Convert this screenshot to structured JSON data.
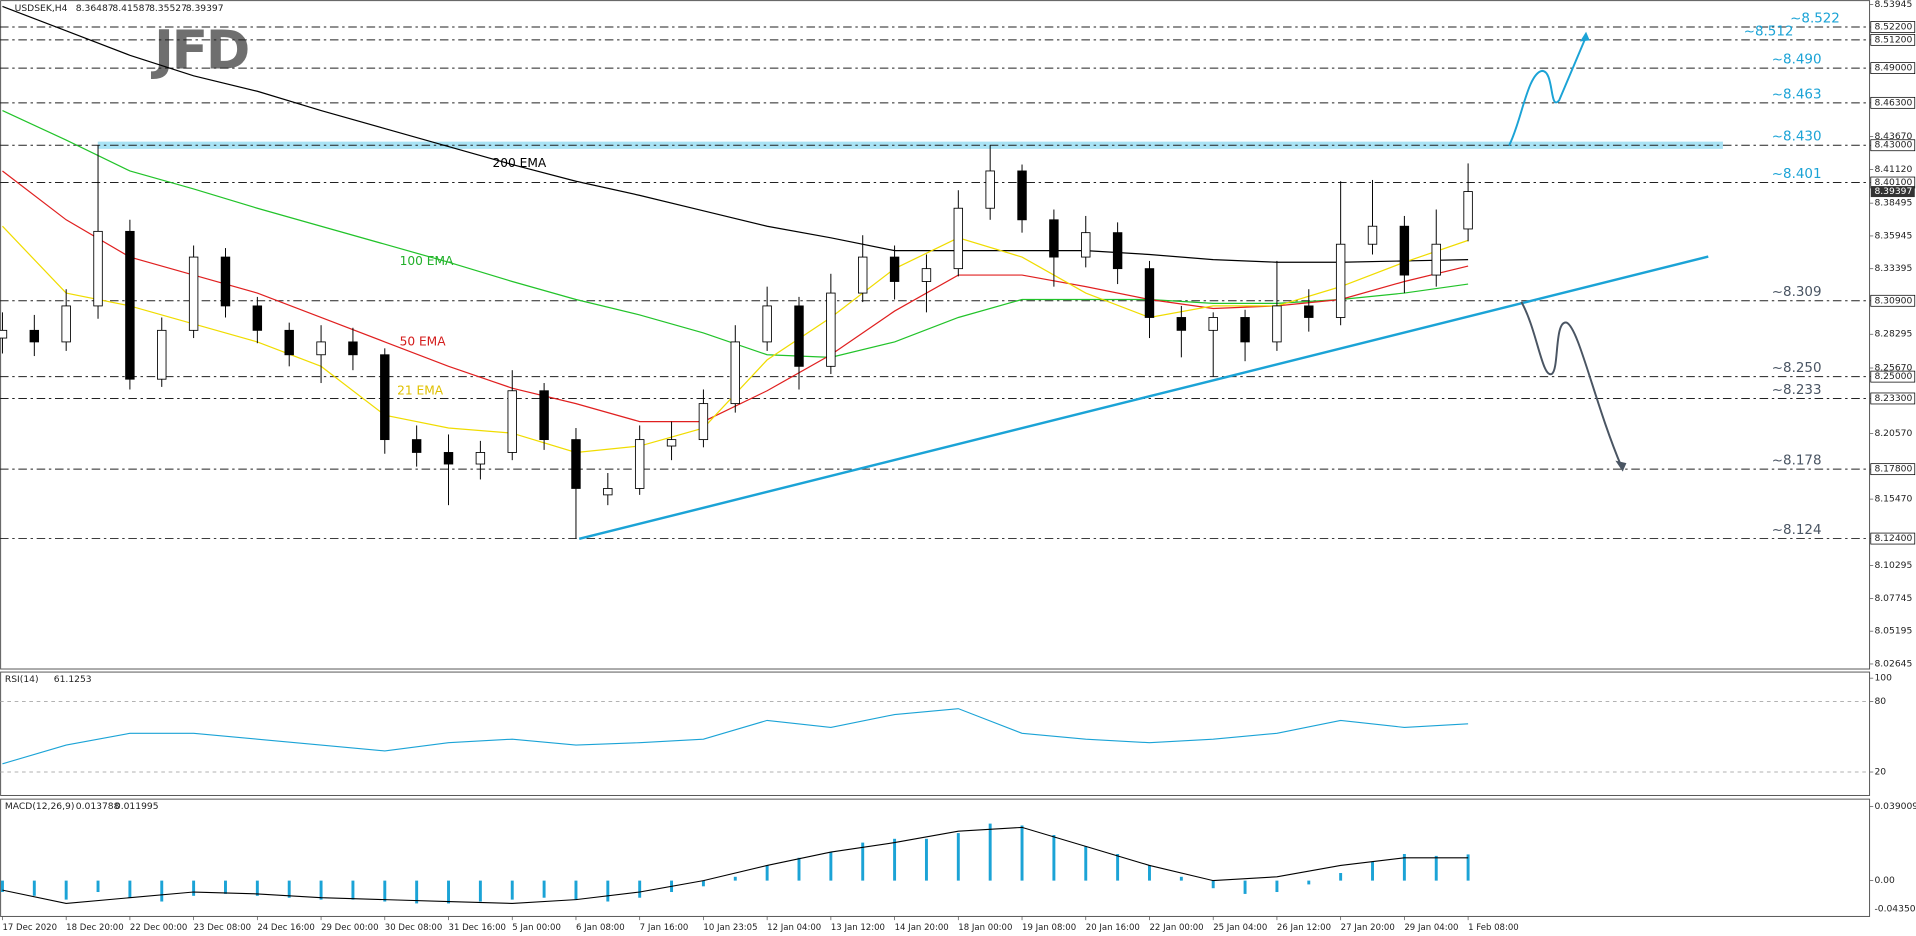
{
  "chart_data": [
    {
      "type": "candlestick",
      "title": "USDSEK,H4",
      "logo": "JFD",
      "xlim": [
        0,
        234.4
      ],
      "ylim": [
        8.023,
        8.543
      ],
      "xticks": [
        {
          "value": 0,
          "label": "17 Dec 2020"
        },
        {
          "value": 8,
          "label": "18 Dec 20:00"
        },
        {
          "value": 16,
          "label": "22 Dec 00:00"
        },
        {
          "value": 24,
          "label": "23 Dec 08:00"
        },
        {
          "value": 32,
          "label": "24 Dec 16:00"
        },
        {
          "value": 40,
          "label": "29 Dec 00:00"
        },
        {
          "value": 48,
          "label": "30 Dec 08:00"
        },
        {
          "value": 56,
          "label": "31 Dec 16:00"
        },
        {
          "value": 64,
          "label": "5 Jan 00:00"
        },
        {
          "value": 72,
          "label": "6 Jan 08:00"
        },
        {
          "value": 80,
          "label": "7 Jan 16:00"
        },
        {
          "value": 88,
          "label": "10 Jan 23:05"
        },
        {
          "value": 96,
          "label": "12 Jan 04:00"
        },
        {
          "value": 104,
          "label": "13 Jan 12:00"
        },
        {
          "value": 112,
          "label": "14 Jan 20:00"
        },
        {
          "value": 120,
          "label": "18 Jan 00:00"
        },
        {
          "value": 128,
          "label": "19 Jan 08:00"
        },
        {
          "value": 136,
          "label": "20 Jan 16:00"
        },
        {
          "value": 144,
          "label": "22 Jan 00:00"
        },
        {
          "value": 152,
          "label": "25 Jan 04:00"
        },
        {
          "value": 160,
          "label": "26 Jan 12:00"
        },
        {
          "value": 168,
          "label": "27 Jan 20:00"
        },
        {
          "value": 176,
          "label": "29 Jan 04:00"
        },
        {
          "value": 184,
          "label": "1 Feb 08:00"
        }
      ],
      "yticks": [
        {
          "value": 8.53945,
          "label": "8.53945"
        },
        {
          "value": 8.522,
          "label": "8.52200"
        },
        {
          "value": 8.512,
          "label": "8.51200"
        },
        {
          "value": 8.49,
          "label": "8.49000"
        },
        {
          "value": 8.463,
          "label": "8.46300"
        },
        {
          "value": 8.4367,
          "label": "8.43670"
        },
        {
          "value": 8.43,
          "label": "8.43000"
        },
        {
          "value": 8.4112,
          "label": "8.41120"
        },
        {
          "value": 8.401,
          "label": "8.40100"
        },
        {
          "value": 8.38495,
          "label": "8.38495"
        },
        {
          "value": 8.35945,
          "label": "8.35945"
        },
        {
          "value": 8.33395,
          "label": "8.33395"
        },
        {
          "value": 8.309,
          "label": "8.30900"
        },
        {
          "value": 8.28295,
          "label": "8.28295"
        },
        {
          "value": 8.2567,
          "label": "8.25670"
        },
        {
          "value": 8.25,
          "label": "8.25000"
        },
        {
          "value": 8.233,
          "label": "8.23300"
        },
        {
          "value": 8.2057,
          "label": "8.20570"
        },
        {
          "value": 8.178,
          "label": "8.17800"
        },
        {
          "value": 8.1547,
          "label": "8.15470"
        },
        {
          "value": 8.124,
          "label": "8.12400"
        },
        {
          "value": 8.10295,
          "label": "8.10295"
        },
        {
          "value": 8.07745,
          "label": "8.07745"
        },
        {
          "value": 8.05195,
          "label": "8.05195"
        },
        {
          "value": 8.02645,
          "label": "8.02645"
        }
      ],
      "up_color": "#ffffff",
      "down_color": "#000000",
      "x": [
        0,
        4,
        8,
        12,
        16,
        20,
        24,
        28,
        32,
        36,
        40,
        44,
        48,
        52,
        56,
        60,
        64,
        68,
        72,
        76,
        80,
        84,
        88,
        92,
        96,
        100,
        104,
        108,
        112,
        116,
        120,
        124,
        128,
        132,
        136,
        140,
        144,
        148,
        152,
        156,
        160,
        164,
        168,
        172,
        176,
        180,
        184
      ],
      "candles": [
        [
          8.28,
          8.3,
          8.268,
          8.286
        ],
        [
          8.286,
          8.298,
          8.266,
          8.277
        ],
        [
          8.277,
          8.318,
          8.27,
          8.305
        ],
        [
          8.305,
          8.43,
          8.295,
          8.363
        ],
        [
          8.363,
          8.372,
          8.24,
          8.248
        ],
        [
          8.248,
          8.296,
          8.242,
          8.286
        ],
        [
          8.286,
          8.352,
          8.28,
          8.343
        ],
        [
          8.343,
          8.35,
          8.296,
          8.305
        ],
        [
          8.305,
          8.312,
          8.276,
          8.286
        ],
        [
          8.286,
          8.292,
          8.258,
          8.267
        ],
        [
          8.267,
          8.29,
          8.245,
          8.277
        ],
        [
          8.277,
          8.288,
          8.255,
          8.267
        ],
        [
          8.267,
          8.272,
          8.19,
          8.201
        ],
        [
          8.201,
          8.212,
          8.18,
          8.191
        ],
        [
          8.191,
          8.205,
          8.15,
          8.182
        ],
        [
          8.182,
          8.2,
          8.17,
          8.191
        ],
        [
          8.191,
          8.255,
          8.185,
          8.239
        ],
        [
          8.239,
          8.245,
          8.193,
          8.201
        ],
        [
          8.201,
          8.21,
          8.124,
          8.163
        ],
        [
          8.158,
          8.175,
          8.15,
          8.163
        ],
        [
          8.163,
          8.212,
          8.158,
          8.201
        ],
        [
          8.196,
          8.215,
          8.185,
          8.201
        ],
        [
          8.201,
          8.24,
          8.195,
          8.229
        ],
        [
          8.229,
          8.29,
          8.222,
          8.277
        ],
        [
          8.277,
          8.32,
          8.27,
          8.305
        ],
        [
          8.305,
          8.312,
          8.24,
          8.258
        ],
        [
          8.258,
          8.33,
          8.252,
          8.315
        ],
        [
          8.315,
          8.36,
          8.308,
          8.343
        ],
        [
          8.343,
          8.352,
          8.31,
          8.324
        ],
        [
          8.324,
          8.345,
          8.3,
          8.334
        ],
        [
          8.334,
          8.395,
          8.328,
          8.381
        ],
        [
          8.381,
          8.43,
          8.372,
          8.41
        ],
        [
          8.41,
          8.415,
          8.362,
          8.372
        ],
        [
          8.372,
          8.38,
          8.32,
          8.343
        ],
        [
          8.343,
          8.375,
          8.335,
          8.362
        ],
        [
          8.362,
          8.37,
          8.322,
          8.334
        ],
        [
          8.334,
          8.34,
          8.28,
          8.296
        ],
        [
          8.296,
          8.305,
          8.265,
          8.286
        ],
        [
          8.286,
          8.3,
          8.25,
          8.296
        ],
        [
          8.296,
          8.302,
          8.262,
          8.277
        ],
        [
          8.277,
          8.34,
          8.27,
          8.305
        ],
        [
          8.305,
          8.318,
          8.285,
          8.296
        ],
        [
          8.296,
          8.402,
          8.29,
          8.353
        ],
        [
          8.353,
          8.403,
          8.345,
          8.367
        ],
        [
          8.367,
          8.375,
          8.315,
          8.329
        ],
        [
          8.329,
          8.38,
          8.32,
          8.353
        ],
        [
          8.36487,
          8.41587,
          8.35527,
          8.39397
        ]
      ],
      "series": [
        {
          "name": "200 EMA",
          "color": "#000000",
          "x": [
            0,
            8,
            16,
            24,
            32,
            40,
            48,
            56,
            64,
            72,
            80,
            88,
            96,
            104,
            112,
            120,
            128,
            136,
            144,
            152,
            160,
            168,
            176,
            184
          ],
          "values": [
            8.538,
            8.519,
            8.5,
            8.484,
            8.472,
            8.457,
            8.443,
            8.429,
            8.415,
            8.402,
            8.391,
            8.379,
            8.367,
            8.358,
            8.348,
            8.348,
            8.348,
            8.348,
            8.345,
            8.341,
            8.339,
            8.339,
            8.34,
            8.341
          ]
        },
        {
          "name": "100 EMA",
          "color": "#22c32a",
          "x": [
            0,
            8,
            16,
            24,
            32,
            40,
            48,
            56,
            64,
            72,
            80,
            88,
            96,
            104,
            112,
            120,
            128,
            136,
            144,
            152,
            160,
            168,
            176,
            184
          ],
          "values": [
            8.457,
            8.434,
            8.41,
            8.396,
            8.381,
            8.367,
            8.353,
            8.339,
            8.324,
            8.31,
            8.298,
            8.284,
            8.267,
            8.265,
            8.277,
            8.296,
            8.31,
            8.31,
            8.31,
            8.307,
            8.307,
            8.31,
            8.315,
            8.322
          ]
        },
        {
          "name": "50 EMA",
          "color": "#e02020",
          "x": [
            0,
            8,
            16,
            24,
            32,
            40,
            48,
            56,
            64,
            72,
            80,
            88,
            96,
            104,
            112,
            120,
            128,
            136,
            144,
            152,
            160,
            168,
            176,
            184
          ],
          "values": [
            8.41,
            8.372,
            8.343,
            8.329,
            8.315,
            8.296,
            8.277,
            8.258,
            8.241,
            8.229,
            8.215,
            8.215,
            8.239,
            8.267,
            8.301,
            8.329,
            8.329,
            8.32,
            8.31,
            8.303,
            8.305,
            8.31,
            8.324,
            8.336
          ]
        },
        {
          "name": "21 EMA",
          "color": "#f0dc00",
          "x": [
            0,
            8,
            16,
            24,
            32,
            40,
            48,
            56,
            64,
            72,
            80,
            88,
            96,
            104,
            112,
            120,
            128,
            136,
            144,
            152,
            160,
            168,
            176,
            184
          ],
          "values": [
            8.367,
            8.315,
            8.305,
            8.291,
            8.277,
            8.258,
            8.22,
            8.21,
            8.206,
            8.191,
            8.196,
            8.21,
            8.263,
            8.296,
            8.334,
            8.358,
            8.343,
            8.315,
            8.296,
            8.305,
            8.305,
            8.32,
            8.339,
            8.356
          ]
        }
      ],
      "levels": [
        {
          "value": 8.522,
          "label": "~8.522",
          "color": "#1ba3d6"
        },
        {
          "value": 8.512,
          "label": "~8.512",
          "color": "#1ba3d6"
        },
        {
          "value": 8.49,
          "label": "~8.490",
          "color": "#1ba3d6"
        },
        {
          "value": 8.463,
          "label": "~8.463",
          "color": "#1ba3d6"
        },
        {
          "value": 8.43,
          "label": "~8.430",
          "color": "#1ba3d6",
          "band": true
        },
        {
          "value": 8.401,
          "label": "~8.401",
          "color": "#1ba3d6"
        },
        {
          "value": 8.309,
          "label": "~8.309",
          "color": "#4a5563"
        },
        {
          "value": 8.25,
          "label": "~8.250",
          "color": "#4a5563"
        },
        {
          "value": 8.233,
          "label": "~8.233",
          "color": "#4a5563"
        },
        {
          "value": 8.178,
          "label": "~8.178",
          "color": "#4a5563"
        },
        {
          "value": 8.124,
          "label": "~8.124",
          "color": "#4a5563"
        }
      ]
    },
    {
      "type": "line",
      "title": "RSI(14)",
      "color": "#1ba3d6",
      "xlim": [
        0,
        234.4
      ],
      "ylim": [
        0,
        100
      ],
      "yticks": [
        100,
        80,
        20
      ],
      "levels": [
        80,
        20
      ],
      "x": [
        0,
        8,
        16,
        24,
        32,
        40,
        48,
        56,
        64,
        72,
        80,
        88,
        96,
        104,
        112,
        120,
        128,
        136,
        144,
        152,
        160,
        168,
        176,
        184
      ],
      "values": [
        27,
        43,
        53,
        53,
        48,
        43,
        38,
        45,
        48,
        43,
        45,
        48,
        64,
        58,
        69,
        74,
        53,
        48,
        45,
        48,
        53,
        64,
        58,
        61.1253
      ]
    },
    {
      "type": "macd",
      "title": "MACD(12,26,9)",
      "color": "#1ba3d6",
      "signal_color": "#000000",
      "xlim": [
        0,
        234.4
      ],
      "ylim": [
        -0.015,
        0.039009
      ],
      "yticks": [
        0.039009,
        {
          "value": 0,
          "label": "0.00"
        }
      ],
      "min_label": "-0.043505",
      "hist_x": [
        0,
        4,
        8,
        12,
        16,
        20,
        24,
        28,
        32,
        36,
        40,
        44,
        48,
        52,
        56,
        60,
        64,
        68,
        72,
        76,
        80,
        84,
        88,
        92,
        96,
        100,
        104,
        108,
        112,
        116,
        120,
        124,
        128,
        132,
        136,
        140,
        144,
        148,
        152,
        156,
        160,
        164,
        168,
        172,
        176,
        180,
        184
      ],
      "histogram": [
        -0.006,
        -0.008,
        -0.01,
        -0.006,
        -0.009,
        -0.011,
        -0.008,
        -0.007,
        -0.008,
        -0.009,
        -0.01,
        -0.01,
        -0.011,
        -0.012,
        -0.012,
        -0.011,
        -0.01,
        -0.009,
        -0.01,
        -0.011,
        -0.009,
        -0.006,
        -0.003,
        0.002,
        0.008,
        0.012,
        0.015,
        0.02,
        0.022,
        0.022,
        0.025,
        0.03,
        0.029,
        0.024,
        0.018,
        0.014,
        0.008,
        0.002,
        -0.004,
        -0.007,
        -0.006,
        -0.002,
        0.004,
        0.01,
        0.014,
        0.013,
        0.013788
      ],
      "signal_x": [
        0,
        8,
        16,
        24,
        32,
        40,
        48,
        56,
        64,
        72,
        80,
        88,
        96,
        104,
        112,
        120,
        128,
        136,
        144,
        152,
        160,
        168,
        176,
        184
      ],
      "signal": [
        -0.005,
        -0.012,
        -0.009,
        -0.006,
        -0.007,
        -0.009,
        -0.01,
        -0.011,
        -0.012,
        -0.01,
        -0.006,
        0,
        0.008,
        0.015,
        0.02,
        0.026,
        0.028,
        0.018,
        0.008,
        0,
        0.002,
        0.008,
        0.012,
        0.011995
      ]
    }
  ]
}
